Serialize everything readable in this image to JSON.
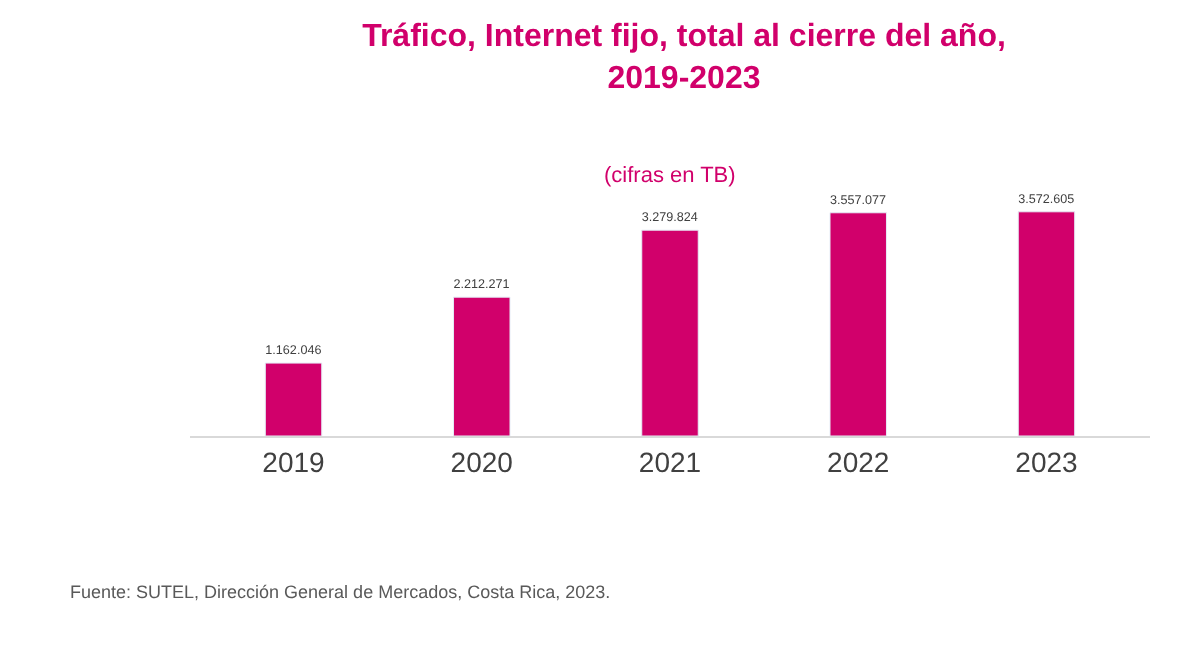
{
  "chart_data": {
    "type": "bar",
    "title": "Tráfico, Internet fijo, total al cierre del año,\n2019-2023",
    "subtitle": "(cifras en TB)",
    "categories": [
      "2019",
      "2020",
      "2021",
      "2022",
      "2023"
    ],
    "values": [
      1162046,
      2212271,
      3279824,
      3557077,
      3572605
    ],
    "value_labels": [
      "1.162.046",
      "2.212.271",
      "3.279.824",
      "3.557.077",
      "3.572.605"
    ],
    "color": "#d1006b",
    "annotations": [
      "Fuente: SUTEL, Dirección General de Mercados, Costa Rica, 2023."
    ]
  }
}
